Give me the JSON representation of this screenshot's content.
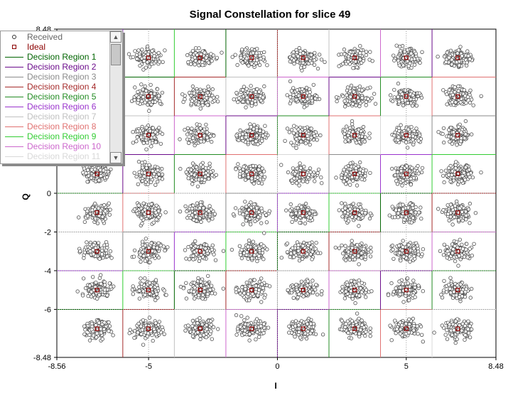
{
  "chart_data": {
    "type": "scatter",
    "title": "Signal Constellation for slice 49",
    "xlabel": "I",
    "ylabel": "Q",
    "xlim": [
      -8.56,
      8.48
    ],
    "ylim": [
      -8.48,
      8.48
    ],
    "x_ticks": [
      "-8.56",
      "-5",
      "0",
      "5",
      "8.48"
    ],
    "y_ticks": [
      "8.48",
      "0",
      "-2",
      "-4",
      "-6",
      "-8.48"
    ],
    "grid": true,
    "legend_placement": "top-left",
    "constellation_levels": [
      -7,
      -5,
      -3,
      -1,
      1,
      3,
      5,
      7
    ],
    "decision_boundaries": [
      -6,
      -4,
      -2,
      0,
      2,
      4,
      6
    ],
    "series": [
      {
        "name": "Received",
        "marker": "circle",
        "color": "#505050",
        "noise_std": 0.22,
        "points_per_symbol": 120
      },
      {
        "name": "Ideal",
        "marker": "square",
        "color": "#8b0000"
      }
    ]
  },
  "legend": {
    "items": [
      {
        "label": "Received",
        "kind": "circle",
        "color": "#666666"
      },
      {
        "label": "Ideal",
        "kind": "square",
        "color": "#8b0000"
      },
      {
        "label": "Decision Region 1",
        "kind": "line",
        "color": "#006400"
      },
      {
        "label": "Decision Region 2",
        "kind": "line",
        "color": "#6a0a8a"
      },
      {
        "label": "Decision Region 3",
        "kind": "line",
        "color": "#8a8a8a"
      },
      {
        "label": "Decision Region 4",
        "kind": "line",
        "color": "#a52a2a"
      },
      {
        "label": "Decision Region 5",
        "kind": "line",
        "color": "#228b22"
      },
      {
        "label": "Decision Region 6",
        "kind": "line",
        "color": "#9932cc"
      },
      {
        "label": "Decision Region 7",
        "kind": "line",
        "color": "#c0c0c0"
      },
      {
        "label": "Decision Region 8",
        "kind": "line",
        "color": "#e07070"
      },
      {
        "label": "Decision Region 9",
        "kind": "line",
        "color": "#32cd32"
      },
      {
        "label": "Decision Region 10",
        "kind": "line",
        "color": "#cc66cc"
      },
      {
        "label": "Decision Region 11",
        "kind": "line",
        "color": "#d8d8d8"
      }
    ]
  }
}
